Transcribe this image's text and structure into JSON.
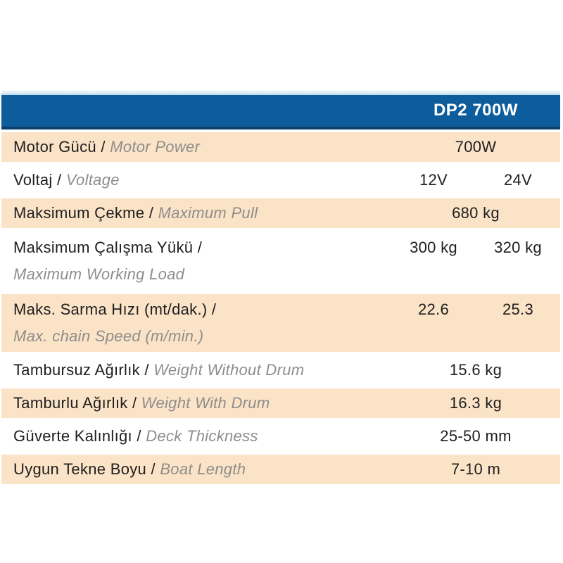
{
  "table": {
    "header": {
      "model": "DP2 700W"
    },
    "separator": " / ",
    "colors": {
      "header_blue": "#0d5c9b",
      "header_border": "#0a406e",
      "row_beige": "#fbe3c7",
      "label_dark": "#1e1e1e",
      "label_gray_italic": "#8e8d8a",
      "header_text": "#ffffff"
    },
    "rows": [
      {
        "label_tr": "Motor Gücü",
        "label_en": "Motor Power",
        "values": [
          "700W"
        ],
        "shade": "beige",
        "two_line": false
      },
      {
        "label_tr": "Voltaj",
        "label_en": "Voltage",
        "values": [
          "12V",
          "24V"
        ],
        "shade": "white",
        "two_line": false
      },
      {
        "label_tr": "Maksimum Çekme",
        "label_en": "Maximum Pull",
        "values": [
          "680 kg"
        ],
        "shade": "beige",
        "two_line": false
      },
      {
        "label_tr": "Maksimum Çalışma Yükü /",
        "label_en": "Maximum Working Load",
        "values": [
          "300 kg",
          "320 kg"
        ],
        "shade": "white",
        "two_line": true
      },
      {
        "label_tr": "Maks. Sarma Hızı (mt/dak.) /",
        "label_en": "Max. chain Speed (m/min.)",
        "values": [
          "22.6",
          "25.3"
        ],
        "shade": "beige",
        "two_line": true
      },
      {
        "label_tr": "Tambursuz Ağırlık",
        "label_en": "Weight Without Drum",
        "values": [
          "15.6 kg"
        ],
        "shade": "white",
        "two_line": false
      },
      {
        "label_tr": "Tamburlu Ağırlık",
        "label_en": "Weight With Drum",
        "values": [
          "16.3 kg"
        ],
        "shade": "beige",
        "two_line": false
      },
      {
        "label_tr": "Güverte Kalınlığı",
        "label_en": "Deck Thickness",
        "values": [
          "25-50 mm"
        ],
        "shade": "white",
        "two_line": false
      },
      {
        "label_tr": "Uygun Tekne Boyu",
        "label_en": "Boat Length",
        "values": [
          "7-10 m"
        ],
        "shade": "beige",
        "two_line": false
      }
    ]
  }
}
